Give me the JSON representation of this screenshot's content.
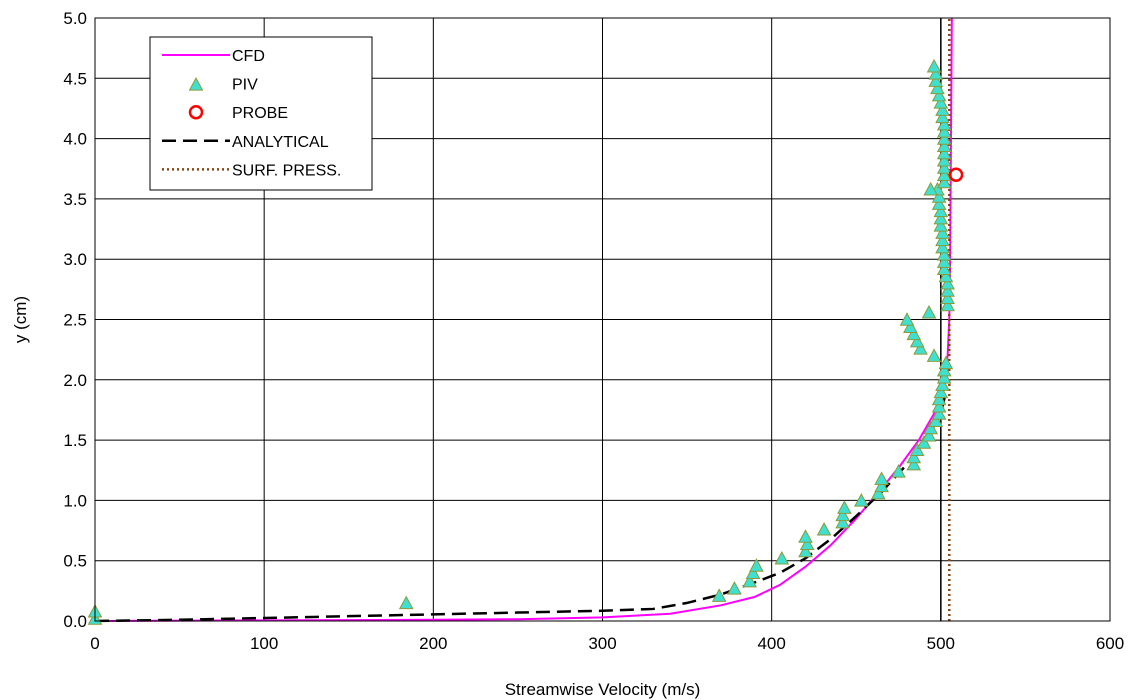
{
  "chart_data": {
    "type": "line",
    "title": "",
    "xlabel": "Streamwise Velocity (m/s)",
    "ylabel": "y (cm)",
    "xlim": [
      0,
      600
    ],
    "ylim": [
      0,
      5
    ],
    "x_ticks": [
      "0",
      "100",
      "200",
      "300",
      "400",
      "500",
      "600"
    ],
    "y_ticks": [
      "0.0",
      "0.5",
      "1.0",
      "1.5",
      "2.0",
      "2.5",
      "3.0",
      "3.5",
      "4.0",
      "4.5",
      "5.0"
    ],
    "grid": true,
    "legend_position": "top-left",
    "series": [
      {
        "name": "CFD",
        "kind": "line",
        "style": "solid",
        "color": "#ff00ff",
        "points": [
          [
            0,
            0
          ],
          [
            100,
            0.005
          ],
          [
            200,
            0.01
          ],
          [
            250,
            0.015
          ],
          [
            300,
            0.03
          ],
          [
            340,
            0.06
          ],
          [
            370,
            0.13
          ],
          [
            390,
            0.2
          ],
          [
            405,
            0.3
          ],
          [
            420,
            0.45
          ],
          [
            435,
            0.63
          ],
          [
            450,
            0.85
          ],
          [
            462,
            1.05
          ],
          [
            475,
            1.27
          ],
          [
            487,
            1.5
          ],
          [
            496,
            1.72
          ],
          [
            502,
            1.95
          ],
          [
            504,
            2.2
          ],
          [
            505,
            2.5
          ],
          [
            505.5,
            3.0
          ],
          [
            506,
            4.0
          ],
          [
            506.5,
            5.0
          ]
        ]
      },
      {
        "name": "PIV",
        "kind": "scatter",
        "marker": "triangle",
        "color": "#40e0d0",
        "edge_color": "#8b9a3a",
        "points": [
          [
            0,
            0.01
          ],
          [
            0,
            0.07
          ],
          [
            184,
            0.14
          ],
          [
            369,
            0.2
          ],
          [
            378,
            0.26
          ],
          [
            387,
            0.32
          ],
          [
            389,
            0.39
          ],
          [
            391,
            0.45
          ],
          [
            406,
            0.51
          ],
          [
            420,
            0.57
          ],
          [
            421,
            0.63
          ],
          [
            420,
            0.69
          ],
          [
            431,
            0.75
          ],
          [
            442,
            0.81
          ],
          [
            442,
            0.87
          ],
          [
            443,
            0.93
          ],
          [
            453,
            0.99
          ],
          [
            463,
            1.05
          ],
          [
            465,
            1.11
          ],
          [
            465,
            1.17
          ],
          [
            475,
            1.23
          ],
          [
            484,
            1.29
          ],
          [
            484,
            1.35
          ],
          [
            486,
            1.41
          ],
          [
            490,
            1.47
          ],
          [
            493,
            1.53
          ],
          [
            494,
            1.59
          ],
          [
            497,
            1.65
          ],
          [
            499,
            1.71
          ],
          [
            499,
            1.77
          ],
          [
            499,
            1.83
          ],
          [
            500,
            1.89
          ],
          [
            501,
            1.95
          ],
          [
            502,
            2.01
          ],
          [
            502,
            2.07
          ],
          [
            503,
            2.13
          ],
          [
            496,
            2.19
          ],
          [
            488,
            2.25
          ],
          [
            486,
            2.31
          ],
          [
            484,
            2.37
          ],
          [
            482,
            2.43
          ],
          [
            480,
            2.49
          ],
          [
            493,
            2.55
          ],
          [
            504,
            2.61
          ],
          [
            504,
            2.67
          ],
          [
            504,
            2.73
          ],
          [
            504,
            2.79
          ],
          [
            503,
            2.85
          ],
          [
            502,
            2.91
          ],
          [
            502,
            2.97
          ],
          [
            502,
            3.03
          ],
          [
            501,
            3.09
          ],
          [
            501,
            3.15
          ],
          [
            501,
            3.21
          ],
          [
            500,
            3.27
          ],
          [
            500,
            3.33
          ],
          [
            500,
            3.39
          ],
          [
            499,
            3.45
          ],
          [
            499,
            3.51
          ],
          [
            498,
            3.57
          ],
          [
            494,
            3.57
          ],
          [
            502,
            3.63
          ],
          [
            502,
            3.69
          ],
          [
            502,
            3.75
          ],
          [
            502,
            3.81
          ],
          [
            502,
            3.87
          ],
          [
            502,
            3.93
          ],
          [
            502,
            3.99
          ],
          [
            502,
            4.05
          ],
          [
            502,
            4.11
          ],
          [
            501,
            4.17
          ],
          [
            501,
            4.23
          ],
          [
            500,
            4.29
          ],
          [
            499,
            4.35
          ],
          [
            498,
            4.41
          ],
          [
            497,
            4.47
          ],
          [
            497,
            4.53
          ],
          [
            496,
            4.59
          ]
        ]
      },
      {
        "name": "PROBE",
        "kind": "scatter",
        "marker": "circle",
        "color": "#ff0000",
        "points": [
          [
            509,
            3.7
          ]
        ]
      },
      {
        "name": "ANALYTICAL",
        "kind": "line",
        "style": "dashed",
        "color": "#000000",
        "points": [
          [
            0,
            0
          ],
          [
            50,
            0.01
          ],
          [
            100,
            0.025
          ],
          [
            150,
            0.04
          ],
          [
            200,
            0.055
          ],
          [
            250,
            0.07
          ],
          [
            300,
            0.085
          ],
          [
            330,
            0.1
          ],
          [
            350,
            0.15
          ],
          [
            370,
            0.22
          ],
          [
            390,
            0.32
          ],
          [
            405,
            0.4
          ],
          [
            420,
            0.52
          ],
          [
            435,
            0.68
          ],
          [
            450,
            0.87
          ],
          [
            465,
            1.07
          ],
          [
            480,
            1.3
          ],
          [
            492,
            1.52
          ],
          [
            500,
            1.72
          ],
          [
            503,
            1.9
          ]
        ]
      },
      {
        "name": "SURF. PRESS.",
        "kind": "line",
        "style": "dotted",
        "color": "#8b4513",
        "points": [
          [
            505,
            0
          ],
          [
            505,
            5
          ]
        ]
      }
    ],
    "reference_lines": [
      {
        "orientation": "vertical",
        "x": 500,
        "color": "#000000"
      }
    ]
  }
}
